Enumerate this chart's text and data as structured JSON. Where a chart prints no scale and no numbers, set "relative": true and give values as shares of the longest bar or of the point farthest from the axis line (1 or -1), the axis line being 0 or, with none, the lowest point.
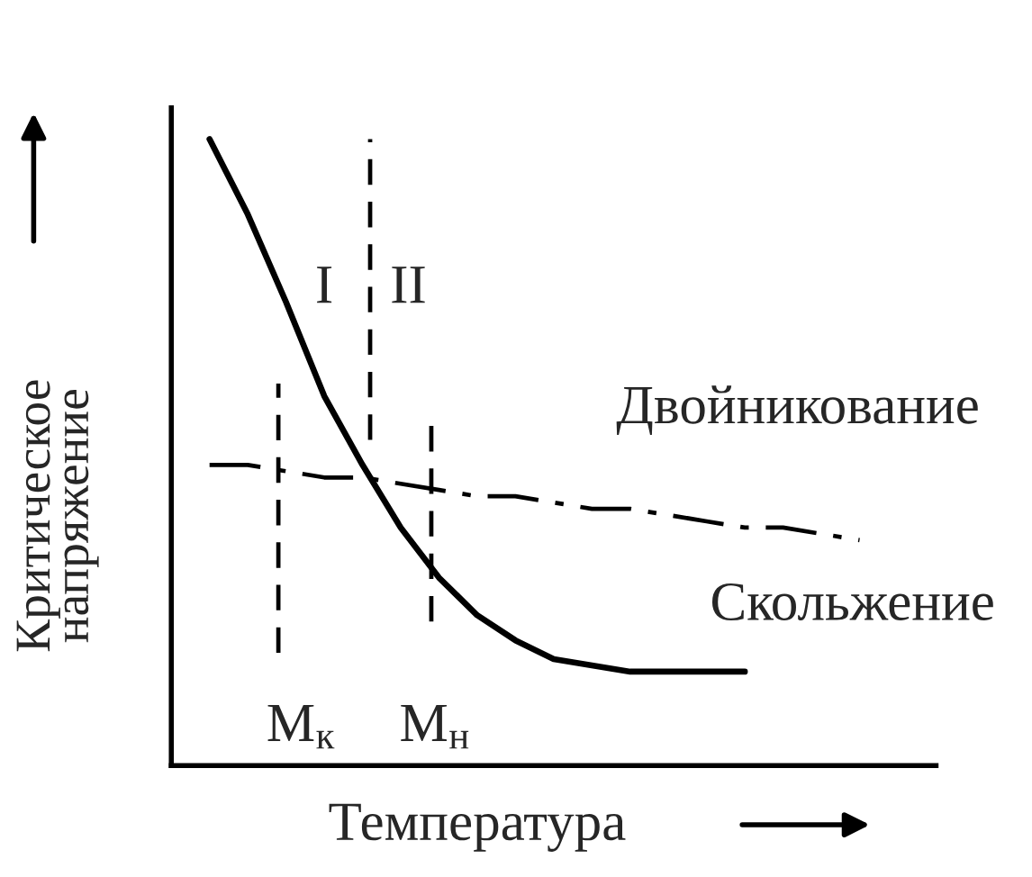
{
  "chart_data": {
    "type": "line",
    "relative": true,
    "xlabel": "Температура",
    "ylabel": "Критическое\nнапряжение",
    "legend": false,
    "marker": "none",
    "categories": [
      null,
      null,
      null,
      null,
      null,
      null,
      null,
      null,
      null,
      null,
      null,
      null,
      null,
      null,
      null,
      null,
      null,
      null,
      null
    ],
    "series": [
      {
        "name": "Скольжение",
        "color": "#000000",
        "line_style": "solid",
        "values": [
          1.0,
          0.88,
          0.74,
          0.59,
          0.48,
          0.38,
          0.3,
          0.24,
          0.2,
          0.17,
          0.16,
          0.15,
          0.15,
          0.15,
          0.15,
          null,
          null,
          null,
          null
        ]
      },
      {
        "name": "Двойникование",
        "color": "#000000",
        "line_style": "dashdot",
        "values": [
          0.48,
          0.48,
          0.47,
          0.46,
          0.46,
          0.45,
          0.44,
          0.43,
          0.43,
          0.42,
          0.41,
          0.41,
          0.4,
          0.39,
          0.38,
          0.38,
          0.37,
          0.36,
          null
        ]
      }
    ],
    "annotations": [
      "I",
      "II",
      "M$_{к}$",
      "M$_{н}$"
    ]
  }
}
